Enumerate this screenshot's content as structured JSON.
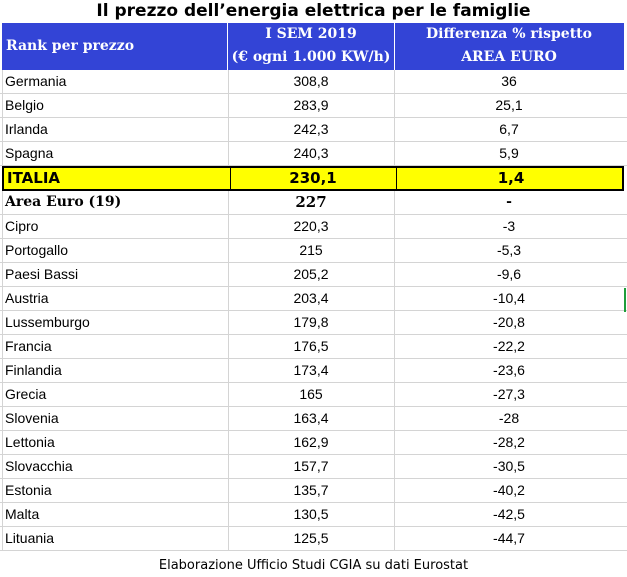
{
  "title": "Il prezzo dell’energia elettrica per le famiglie",
  "header": {
    "col1": "Rank per prezzo",
    "col2_line1": "I SEM 2019",
    "col2_line2": "(€ ogni 1.000 KW/h)",
    "col3_line1": "Differenza % rispetto",
    "col3_line2": "AREA EURO",
    "background_color": "#3344d6"
  },
  "rows": [
    {
      "country": "Germania",
      "price": "308,8",
      "diff": "36"
    },
    {
      "country": "Belgio",
      "price": "283,9",
      "diff": "25,1"
    },
    {
      "country": "Irlanda",
      "price": "242,3",
      "diff": "6,7"
    },
    {
      "country": "Spagna",
      "price": "240,3",
      "diff": "5,9"
    },
    {
      "country": "ITALIA",
      "price": "230,1",
      "diff": "1,4"
    },
    {
      "country": "Area Euro (19)",
      "price": "227",
      "diff": "-"
    },
    {
      "country": "Cipro",
      "price": "220,3",
      "diff": "-3"
    },
    {
      "country": "Portogallo",
      "price": "215",
      "diff": "-5,3"
    },
    {
      "country": "Paesi Bassi",
      "price": "205,2",
      "diff": "-9,6"
    },
    {
      "country": "Austria",
      "price": "203,4",
      "diff": "-10,4"
    },
    {
      "country": "Lussemburgo",
      "price": "179,8",
      "diff": "-20,8"
    },
    {
      "country": "Francia",
      "price": "176,5",
      "diff": "-22,2"
    },
    {
      "country": "Finlandia",
      "price": "173,4",
      "diff": "-23,6"
    },
    {
      "country": "Grecia",
      "price": "165",
      "diff": "-27,3"
    },
    {
      "country": "Slovenia",
      "price": "163,4",
      "diff": "-28"
    },
    {
      "country": "Lettonia",
      "price": "162,9",
      "diff": "-28,2"
    },
    {
      "country": "Slovacchia",
      "price": "157,7",
      "diff": "-30,5"
    },
    {
      "country": "Estonia",
      "price": "135,7",
      "diff": "-40,2"
    },
    {
      "country": "Malta",
      "price": "130,5",
      "diff": "-42,5"
    },
    {
      "country": "Lituania",
      "price": "125,5",
      "diff": "-44,7"
    }
  ],
  "highlight_color": "#ffff00",
  "footer": "Elaborazione Ufficio Studi CGIA su dati Eurostat"
}
